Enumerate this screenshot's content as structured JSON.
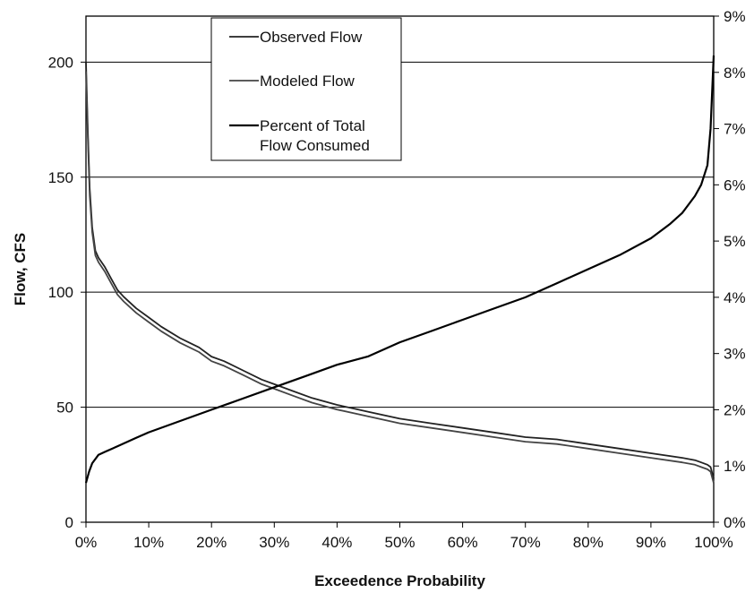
{
  "chart_data": {
    "type": "line",
    "title": "",
    "xlabel": "Exceedence Probability",
    "ylabel": "Flow, CFS",
    "y2label": "",
    "xlim": [
      0,
      100
    ],
    "ylim": [
      0,
      220
    ],
    "y2lim": [
      0,
      9
    ],
    "x_ticks": [
      {
        "value": 0,
        "label": "0%"
      },
      {
        "value": 10,
        "label": "10%"
      },
      {
        "value": 20,
        "label": "20%"
      },
      {
        "value": 30,
        "label": "30%"
      },
      {
        "value": 40,
        "label": "40%"
      },
      {
        "value": 50,
        "label": "50%"
      },
      {
        "value": 60,
        "label": "60%"
      },
      {
        "value": 70,
        "label": "70%"
      },
      {
        "value": 80,
        "label": "80%"
      },
      {
        "value": 90,
        "label": "90%"
      },
      {
        "value": 100,
        "label": "100%"
      }
    ],
    "y_ticks": [
      {
        "value": 0,
        "label": "0"
      },
      {
        "value": 50,
        "label": "50"
      },
      {
        "value": 100,
        "label": "100"
      },
      {
        "value": 150,
        "label": "150"
      },
      {
        "value": 200,
        "label": "200"
      }
    ],
    "y2_ticks": [
      {
        "value": 0,
        "label": "0%"
      },
      {
        "value": 1,
        "label": "1%"
      },
      {
        "value": 2,
        "label": "2%"
      },
      {
        "value": 3,
        "label": "3%"
      },
      {
        "value": 4,
        "label": "4%"
      },
      {
        "value": 5,
        "label": "5%"
      },
      {
        "value": 6,
        "label": "6%"
      },
      {
        "value": 7,
        "label": "7%"
      },
      {
        "value": 8,
        "label": "8%"
      },
      {
        "value": 9,
        "label": "9%"
      }
    ],
    "gridlines_y": [
      50,
      100,
      150,
      200
    ],
    "legend": {
      "position": "top-center",
      "entries": [
        "Observed Flow",
        "Modeled Flow",
        "Percent of Total Flow Consumed"
      ]
    },
    "series": [
      {
        "name": "Observed Flow",
        "axis": "left",
        "color": "#222222",
        "x": [
          0,
          0.3,
          0.6,
          1,
          1.5,
          2,
          3,
          4,
          5,
          6,
          8,
          10,
          12,
          15,
          18,
          20,
          22,
          25,
          28,
          30,
          33,
          36,
          40,
          45,
          50,
          55,
          60,
          65,
          70,
          75,
          80,
          85,
          90,
          95,
          97,
          98,
          99,
          99.5,
          100
        ],
        "values": [
          200,
          170,
          145,
          128,
          118,
          115,
          111,
          106,
          101,
          98,
          93,
          89,
          85,
          80,
          76,
          72,
          70,
          66,
          62,
          60,
          57,
          54,
          51,
          48,
          45,
          43,
          41,
          39,
          37,
          36,
          34,
          32,
          30,
          28,
          27,
          26,
          25,
          24,
          19
        ]
      },
      {
        "name": "Modeled Flow",
        "axis": "left",
        "color": "#444444",
        "x": [
          0,
          0.3,
          0.6,
          1,
          1.5,
          2,
          3,
          4,
          5,
          6,
          8,
          10,
          12,
          15,
          18,
          20,
          22,
          25,
          28,
          30,
          33,
          36,
          40,
          45,
          50,
          55,
          60,
          65,
          70,
          75,
          80,
          85,
          90,
          95,
          97,
          98,
          99,
          99.5,
          100
        ],
        "values": [
          196,
          167,
          142,
          126,
          116,
          113,
          109,
          104,
          99,
          96,
          91,
          87,
          83,
          78,
          74,
          70,
          68,
          64,
          60,
          58,
          55,
          52,
          49,
          46,
          43,
          41,
          39,
          37,
          35,
          34,
          32,
          30,
          28,
          26,
          25,
          24,
          23,
          22,
          17
        ]
      },
      {
        "name": "Percent of Total Flow Consumed",
        "axis": "right",
        "color": "#000000",
        "x": [
          0,
          0.5,
          1,
          2,
          3,
          5,
          8,
          10,
          15,
          20,
          25,
          30,
          35,
          40,
          45,
          50,
          55,
          60,
          65,
          70,
          75,
          80,
          85,
          90,
          93,
          95,
          97,
          98,
          99,
          99.5,
          100
        ],
        "values": [
          0.7,
          0.9,
          1.05,
          1.2,
          1.25,
          1.35,
          1.5,
          1.6,
          1.8,
          2.0,
          2.2,
          2.4,
          2.6,
          2.8,
          2.95,
          3.2,
          3.4,
          3.6,
          3.8,
          4.0,
          4.25,
          4.5,
          4.75,
          5.05,
          5.3,
          5.5,
          5.8,
          6.0,
          6.35,
          7.0,
          8.3
        ]
      }
    ]
  }
}
